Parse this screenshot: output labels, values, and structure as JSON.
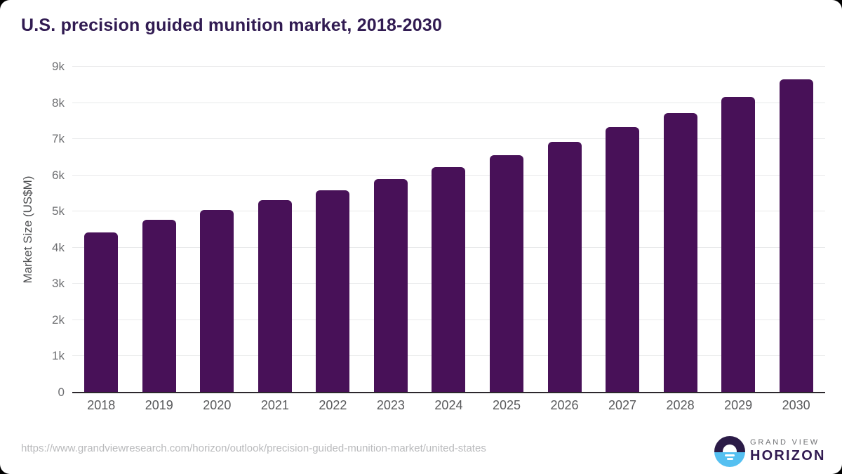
{
  "chart_data": {
    "type": "bar",
    "title": "U.S. precision guided munition market, 2018-2030",
    "xlabel": "",
    "ylabel": "Market Size (US$M)",
    "categories": [
      "2018",
      "2019",
      "2020",
      "2021",
      "2022",
      "2023",
      "2024",
      "2025",
      "2026",
      "2027",
      "2028",
      "2029",
      "2030"
    ],
    "values": [
      4430,
      4770,
      5040,
      5310,
      5590,
      5900,
      6230,
      6560,
      6930,
      7330,
      7730,
      8170,
      8650
    ],
    "ylim": [
      0,
      9000
    ],
    "ytick_interval": 1000,
    "ytick_labels": [
      "0",
      "1k",
      "2k",
      "3k",
      "4k",
      "5k",
      "6k",
      "7k",
      "8k",
      "9k"
    ],
    "grid": "horizontal",
    "legend_position": "none",
    "bar_color": "#481158"
  },
  "footer": {
    "source_url": "https://www.grandviewresearch.com/horizon/outlook/precision-guided-munition-market/united-states",
    "logo": {
      "brand": "GRAND VIEW",
      "product": "HORIZON",
      "icon": "sunrise-horizon-icon",
      "circle_top_color": "#2b1b47",
      "circle_bottom_color": "#55c0f1"
    }
  },
  "colors": {
    "title_text": "#311b52",
    "axis_text": "#6e6f72",
    "gridline": "#e8e9ea",
    "background": "#ffffff"
  }
}
